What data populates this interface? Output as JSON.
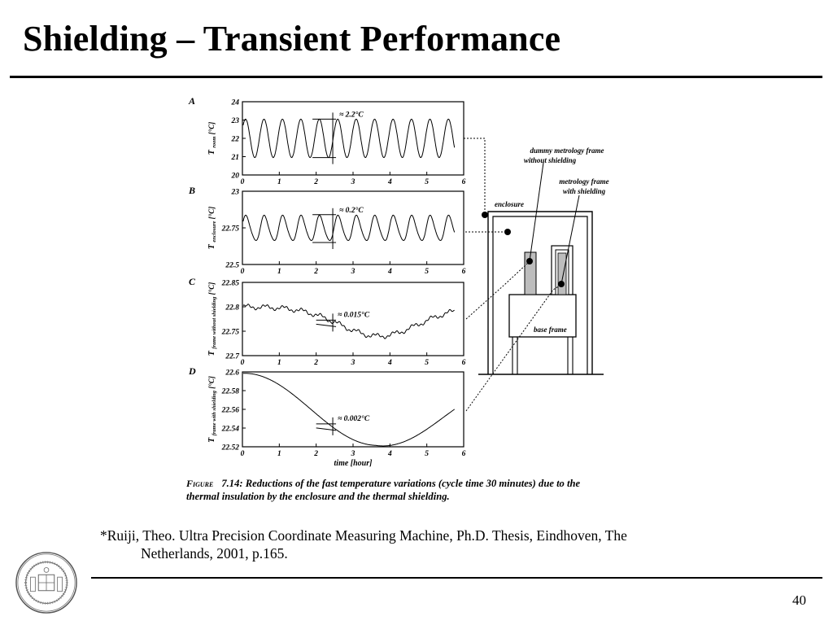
{
  "slide": {
    "title": "Shielding – Transient Performance",
    "page_number": "40"
  },
  "figure": {
    "caption_prefix": "Figure",
    "caption": "7.14: Reductions of the fast temperature variations (cycle time 30 minutes) due to the thermal insulation by the enclosure and the thermal shielding.",
    "x_label": "time [hour]",
    "x_ticks": [
      "0",
      "1",
      "2",
      "3",
      "4",
      "5",
      "6"
    ],
    "panels": [
      {
        "letter": "A",
        "ylabel_main": "T",
        "ylabel_sub": "room",
        "unit": "[°C]",
        "yticks": [
          "24",
          "23",
          "22",
          "21",
          "20"
        ],
        "annotation": "≈ 2.2°C"
      },
      {
        "letter": "B",
        "ylabel_main": "T",
        "ylabel_sub": "enclosure",
        "unit": "[°C]",
        "yticks": [
          "23",
          "22.75",
          "22.5"
        ],
        "annotation": "≈ 0.2°C"
      },
      {
        "letter": "C",
        "ylabel_main": "T",
        "ylabel_sub": "frame without shielding",
        "unit": "[°C]",
        "yticks": [
          "22.85",
          "22.8",
          "22.75",
          "22.7"
        ],
        "annotation": "≈ 0.015°C"
      },
      {
        "letter": "D",
        "ylabel_main": "T",
        "ylabel_sub": "frame with shielding",
        "unit": "[°C]",
        "yticks": [
          "22.6",
          "22.58",
          "22.56",
          "22.54",
          "22.52"
        ],
        "annotation": "≈ 0.002°C"
      }
    ],
    "diagram_labels": {
      "dummy": "dummy metrology frame",
      "dummy2": "without shielding",
      "metro": "metrology frame",
      "metro2": "with shielding",
      "enclosure": "enclosure",
      "base": "base frame"
    }
  },
  "citation": {
    "line1": "*Ruiji, Theo.  Ultra Precision Coordinate Measuring Machine, Ph.D. Thesis, Eindhoven, The",
    "line2": "Netherlands, 2001, p.165."
  },
  "chart_data": [
    {
      "type": "line",
      "title": "A",
      "xlim": [
        0,
        6
      ],
      "ylim": [
        20,
        24
      ],
      "series": [
        {
          "values_desc": "sinusoid",
          "x": [
            0,
            0.25,
            0.5,
            0.75,
            1,
            1.25,
            1.5,
            1.75,
            2,
            2.25,
            2.5,
            2.75,
            3,
            3.25,
            3.5,
            3.75,
            4,
            4.25,
            4.5,
            4.75,
            5,
            5.25,
            5.5,
            5.75
          ],
          "values": [
            22.1,
            22.9,
            21.0,
            23.0,
            21.0,
            23.0,
            21.0,
            23.0,
            21.0,
            23.0,
            21.0,
            23.0,
            21.0,
            23.0,
            21.0,
            23.0,
            21.0,
            23.0,
            21.0,
            23.0,
            21.0,
            23.0,
            21.0,
            22.3
          ]
        }
      ]
    },
    {
      "type": "line",
      "title": "B",
      "xlim": [
        0,
        6
      ],
      "ylim": [
        22.5,
        23
      ],
      "series": [
        {
          "x": [
            0,
            0.25,
            0.5,
            0.75,
            1,
            1.25,
            1.5,
            1.75,
            2,
            2.25,
            2.5,
            2.75,
            3,
            3.25,
            3.5,
            3.75,
            4,
            4.25,
            4.5,
            4.75,
            5,
            5.25,
            5.5,
            5.75
          ],
          "values": [
            22.76,
            22.71,
            22.81,
            22.68,
            22.82,
            22.66,
            22.83,
            22.66,
            22.83,
            22.65,
            22.84,
            22.65,
            22.84,
            22.66,
            22.83,
            22.66,
            22.83,
            22.67,
            22.82,
            22.68,
            22.82,
            22.69,
            22.81,
            22.76
          ]
        }
      ]
    },
    {
      "type": "line",
      "title": "C",
      "xlim": [
        0,
        6
      ],
      "ylim": [
        22.7,
        22.85
      ],
      "series": [
        {
          "x": [
            0,
            0.5,
            1,
            1.5,
            2,
            2.5,
            3,
            3.5,
            4,
            4.5,
            5,
            5.5,
            5.75
          ],
          "values": [
            22.8,
            22.795,
            22.79,
            22.785,
            22.775,
            22.755,
            22.75,
            22.74,
            22.745,
            22.75,
            22.765,
            22.79,
            22.79
          ]
        }
      ]
    },
    {
      "type": "line",
      "title": "D",
      "xlim": [
        0,
        6
      ],
      "ylim": [
        22.52,
        22.6
      ],
      "series": [
        {
          "x": [
            0,
            0.5,
            1,
            1.5,
            2,
            2.5,
            3,
            3.5,
            4,
            4.5,
            5,
            5.5,
            5.75
          ],
          "values": [
            22.598,
            22.592,
            22.583,
            22.573,
            22.562,
            22.551,
            22.541,
            22.534,
            22.536,
            22.543,
            22.556,
            22.568,
            22.572
          ]
        }
      ]
    }
  ],
  "colors": {
    "ink": "#000000",
    "dot": "#444444",
    "stipple": "#bdbdbd"
  }
}
